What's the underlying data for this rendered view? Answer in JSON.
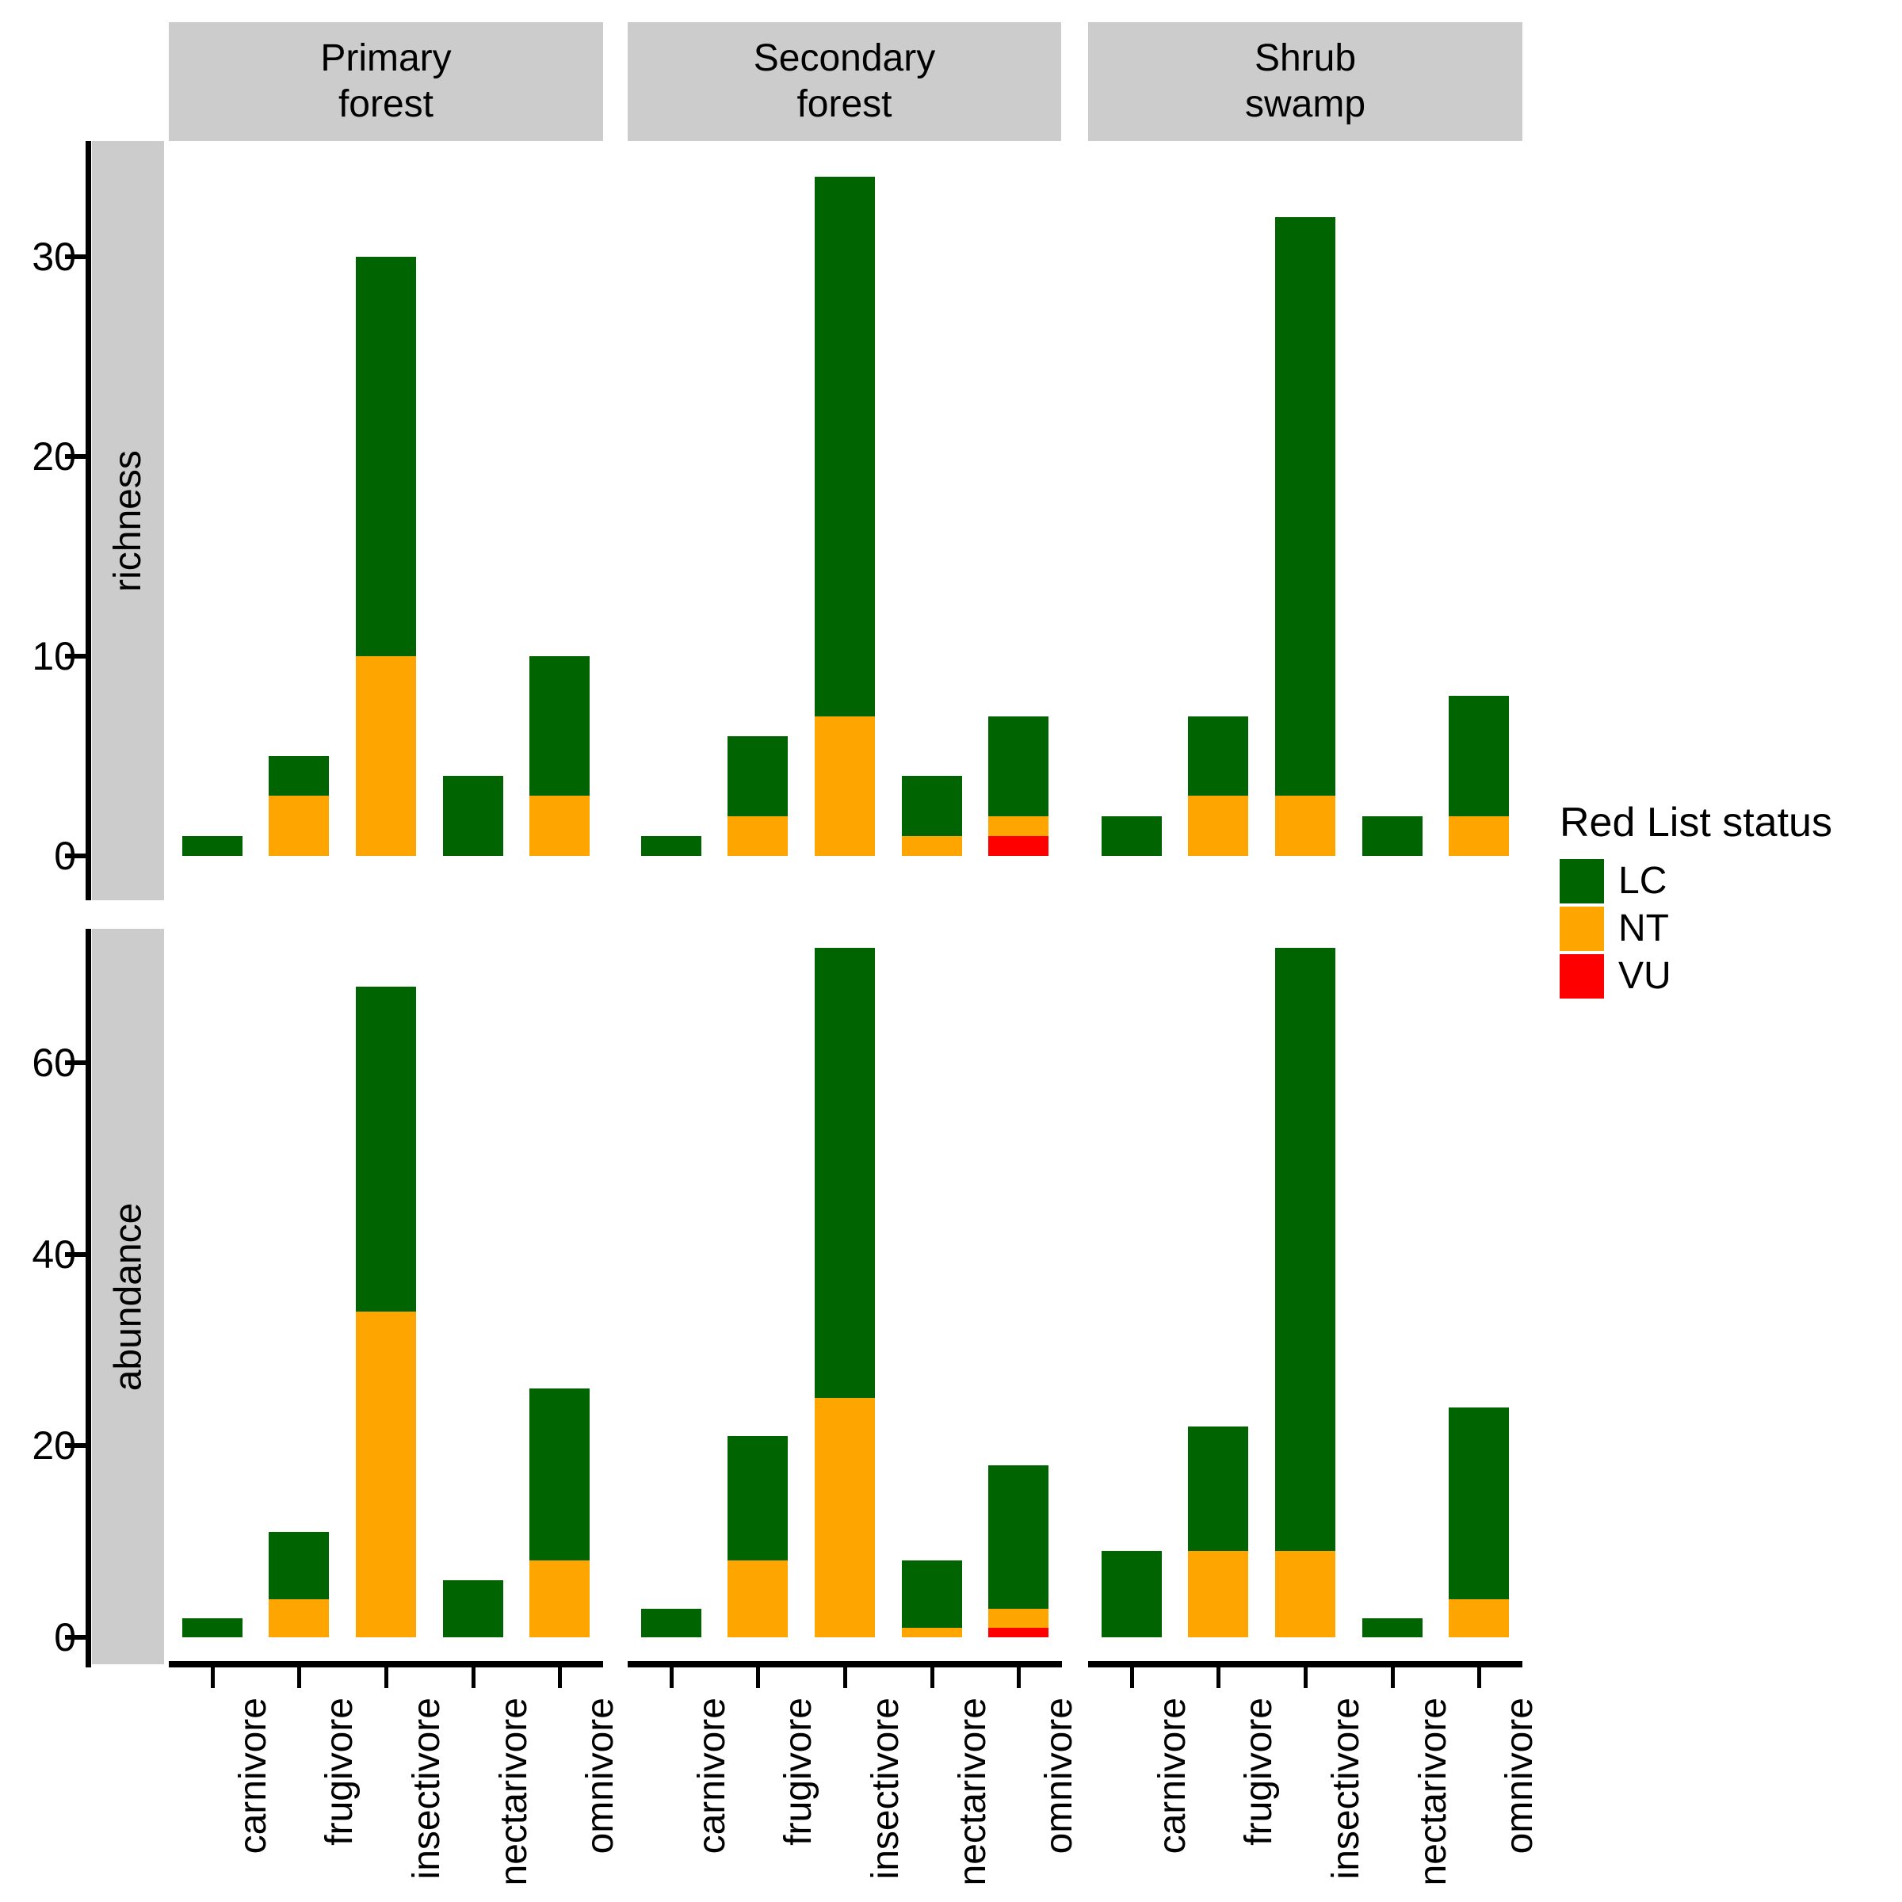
{
  "legend": {
    "title": "Red List status",
    "entries": [
      {
        "label": "LC",
        "color": "#006400"
      },
      {
        "label": "NT",
        "color": "#FFA500"
      },
      {
        "label": "VU",
        "color": "#FF0000"
      }
    ]
  },
  "colors": {
    "LC": "#006400",
    "NT": "#FFA500",
    "VU": "#FF0000",
    "strip_background": "#CCCCCC",
    "axis": "#000000"
  },
  "chart_data": {
    "type": "bar",
    "stacked": true,
    "stack_order_bottom_to_top": [
      "VU",
      "NT",
      "LC"
    ],
    "categories": [
      "carnivore",
      "frugivore",
      "insectivore",
      "nectarivore",
      "omnivore"
    ],
    "facet_cols": [
      {
        "line1": "Primary",
        "line2": "forest"
      },
      {
        "line1": "Secondary",
        "line2": "forest"
      },
      {
        "line1": "Shrub",
        "line2": "swamp"
      }
    ],
    "facet_rows": [
      {
        "label": "richness",
        "ticks": [
          0,
          10,
          20,
          30
        ],
        "ylim": [
          0,
          36
        ]
      },
      {
        "label": "abundance",
        "ticks": [
          0,
          20,
          40,
          60
        ],
        "ylim": [
          0,
          74
        ]
      }
    ],
    "grid": false,
    "legend_position": "right",
    "panels": [
      {
        "row": "richness",
        "col": "Primary forest",
        "bars": [
          {
            "category": "carnivore",
            "VU": 0,
            "NT": 0,
            "LC": 1
          },
          {
            "category": "frugivore",
            "VU": 0,
            "NT": 3,
            "LC": 2
          },
          {
            "category": "insectivore",
            "VU": 0,
            "NT": 10,
            "LC": 20
          },
          {
            "category": "nectarivore",
            "VU": 0,
            "NT": 0,
            "LC": 4
          },
          {
            "category": "omnivore",
            "VU": 0,
            "NT": 3,
            "LC": 7
          }
        ]
      },
      {
        "row": "richness",
        "col": "Secondary forest",
        "bars": [
          {
            "category": "carnivore",
            "VU": 0,
            "NT": 0,
            "LC": 1
          },
          {
            "category": "frugivore",
            "VU": 0,
            "NT": 2,
            "LC": 4
          },
          {
            "category": "insectivore",
            "VU": 0,
            "NT": 7,
            "LC": 27
          },
          {
            "category": "nectarivore",
            "VU": 0,
            "NT": 1,
            "LC": 3
          },
          {
            "category": "omnivore",
            "VU": 1,
            "NT": 1,
            "LC": 5
          }
        ]
      },
      {
        "row": "richness",
        "col": "Shrub swamp",
        "bars": [
          {
            "category": "carnivore",
            "VU": 0,
            "NT": 0,
            "LC": 2
          },
          {
            "category": "frugivore",
            "VU": 0,
            "NT": 3,
            "LC": 4
          },
          {
            "category": "insectivore",
            "VU": 0,
            "NT": 3,
            "LC": 29
          },
          {
            "category": "nectarivore",
            "VU": 0,
            "NT": 0,
            "LC": 2
          },
          {
            "category": "omnivore",
            "VU": 0,
            "NT": 2,
            "LC": 6
          }
        ]
      },
      {
        "row": "abundance",
        "col": "Primary forest",
        "bars": [
          {
            "category": "carnivore",
            "VU": 0,
            "NT": 0,
            "LC": 2
          },
          {
            "category": "frugivore",
            "VU": 0,
            "NT": 4,
            "LC": 7
          },
          {
            "category": "insectivore",
            "VU": 0,
            "NT": 34,
            "LC": 34
          },
          {
            "category": "nectarivore",
            "VU": 0,
            "NT": 0,
            "LC": 6
          },
          {
            "category": "omnivore",
            "VU": 0,
            "NT": 8,
            "LC": 18
          }
        ]
      },
      {
        "row": "abundance",
        "col": "Secondary forest",
        "bars": [
          {
            "category": "carnivore",
            "VU": 0,
            "NT": 0,
            "LC": 3
          },
          {
            "category": "frugivore",
            "VU": 0,
            "NT": 8,
            "LC": 13
          },
          {
            "category": "insectivore",
            "VU": 0,
            "NT": 25,
            "LC": 47
          },
          {
            "category": "nectarivore",
            "VU": 0,
            "NT": 1,
            "LC": 7
          },
          {
            "category": "omnivore",
            "VU": 1,
            "NT": 2,
            "LC": 15
          }
        ]
      },
      {
        "row": "abundance",
        "col": "Shrub swamp",
        "bars": [
          {
            "category": "carnivore",
            "VU": 0,
            "NT": 0,
            "LC": 9
          },
          {
            "category": "frugivore",
            "VU": 0,
            "NT": 9,
            "LC": 13
          },
          {
            "category": "insectivore",
            "VU": 0,
            "NT": 9,
            "LC": 63
          },
          {
            "category": "nectarivore",
            "VU": 0,
            "NT": 0,
            "LC": 2
          },
          {
            "category": "omnivore",
            "VU": 0,
            "NT": 4,
            "LC": 20
          }
        ]
      }
    ]
  }
}
